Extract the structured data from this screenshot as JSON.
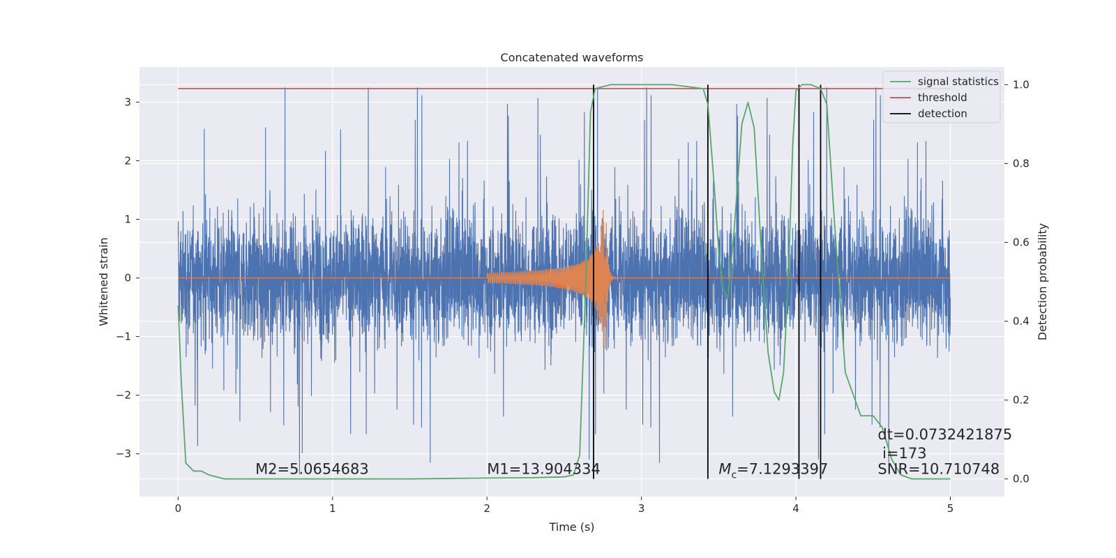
{
  "chart_data": {
    "type": "line",
    "title": "Concatenated waveforms",
    "xlabel": "Time (s)",
    "ylabel": "Whitened strain",
    "ylabel_right": "Detection probability",
    "xlim": [
      -0.25,
      5.35
    ],
    "ylim": [
      -3.73,
      3.6
    ],
    "ylim_right": [
      -0.045,
      1.045
    ],
    "xticks": [
      0,
      1,
      2,
      3,
      4,
      5
    ],
    "yticks": [
      -3,
      -2,
      -1,
      0,
      1,
      2,
      3
    ],
    "yticks_right": [
      0.0,
      0.2,
      0.4,
      0.6,
      0.8,
      1.0
    ],
    "xtick_labels": [
      "0",
      "1",
      "2",
      "3",
      "4",
      "5"
    ],
    "ytick_labels": [
      "−3",
      "−2",
      "−1",
      "0",
      "1",
      "2",
      "3"
    ],
    "ytick_labels_right": [
      "0.0",
      "0.2",
      "0.4",
      "0.6",
      "0.8",
      "1.0"
    ],
    "grid": true,
    "legend_position": "top-right",
    "colors": {
      "noise": "#4c72b0",
      "template": "#dd8452",
      "signal_statistics": "#55a868",
      "threshold": "#c44e52",
      "detection": "#000000",
      "background": "#eaeaf2"
    },
    "series": [
      {
        "name": "signal statistics",
        "axis": "right",
        "x": [
          0,
          0.02,
          0.05,
          0.1,
          0.15,
          0.2,
          0.3,
          0.5,
          1.0,
          1.5,
          2.0,
          2.3,
          2.5,
          2.56,
          2.6,
          2.64,
          2.67,
          2.7,
          2.8,
          3.0,
          3.2,
          3.4,
          3.43,
          3.47,
          3.5,
          3.53,
          3.56,
          3.6,
          3.65,
          3.69,
          3.73,
          3.78,
          3.82,
          3.86,
          3.89,
          3.92,
          3.95,
          3.98,
          4.0,
          4.04,
          4.1,
          4.16,
          4.2,
          4.25,
          4.32,
          4.42,
          4.5,
          4.56,
          4.62,
          4.68,
          4.75,
          5.0
        ],
        "y": [
          0.44,
          0.25,
          0.04,
          0.02,
          0.02,
          0.01,
          0.0,
          0.0,
          0.0,
          0.0,
          0.002,
          0.003,
          0.005,
          0.01,
          0.06,
          0.5,
          0.93,
          0.99,
          1.0,
          1.0,
          1.0,
          0.99,
          0.95,
          0.75,
          0.58,
          0.48,
          0.46,
          0.63,
          0.9,
          0.955,
          0.89,
          0.55,
          0.32,
          0.22,
          0.2,
          0.27,
          0.5,
          0.85,
          0.985,
          1.0,
          1.0,
          0.99,
          0.95,
          0.65,
          0.27,
          0.16,
          0.16,
          0.13,
          0.05,
          0.01,
          0.0,
          0.0
        ]
      },
      {
        "name": "threshold",
        "axis": "right",
        "x": [
          0,
          5
        ],
        "y": [
          0.99,
          0.99
        ]
      },
      {
        "name": "detection",
        "axis": "right",
        "x": [
          2.69,
          3.43,
          4.02,
          4.16
        ],
        "y_range": [
          0,
          1
        ]
      }
    ],
    "annotations": [
      {
        "text": "M2=5.0654683",
        "x": 0.5,
        "y": -3.26
      },
      {
        "text": "M1=13.904334",
        "x": 2.0,
        "y": -3.26
      },
      {
        "text_prefix": "M",
        "text_sub": "c",
        "text_suffix": "=7.1293397",
        "x": 3.5,
        "y": -3.26
      },
      {
        "text": "dt=0.0732421875",
        "x": 4.53,
        "y": -2.67
      },
      {
        "text": "i=173",
        "x": 4.56,
        "y": -2.99
      },
      {
        "text": "SNR=10.710748",
        "x": 4.53,
        "y": -3.26
      }
    ],
    "legend": [
      "signal statistics",
      "threshold",
      "detection"
    ]
  }
}
